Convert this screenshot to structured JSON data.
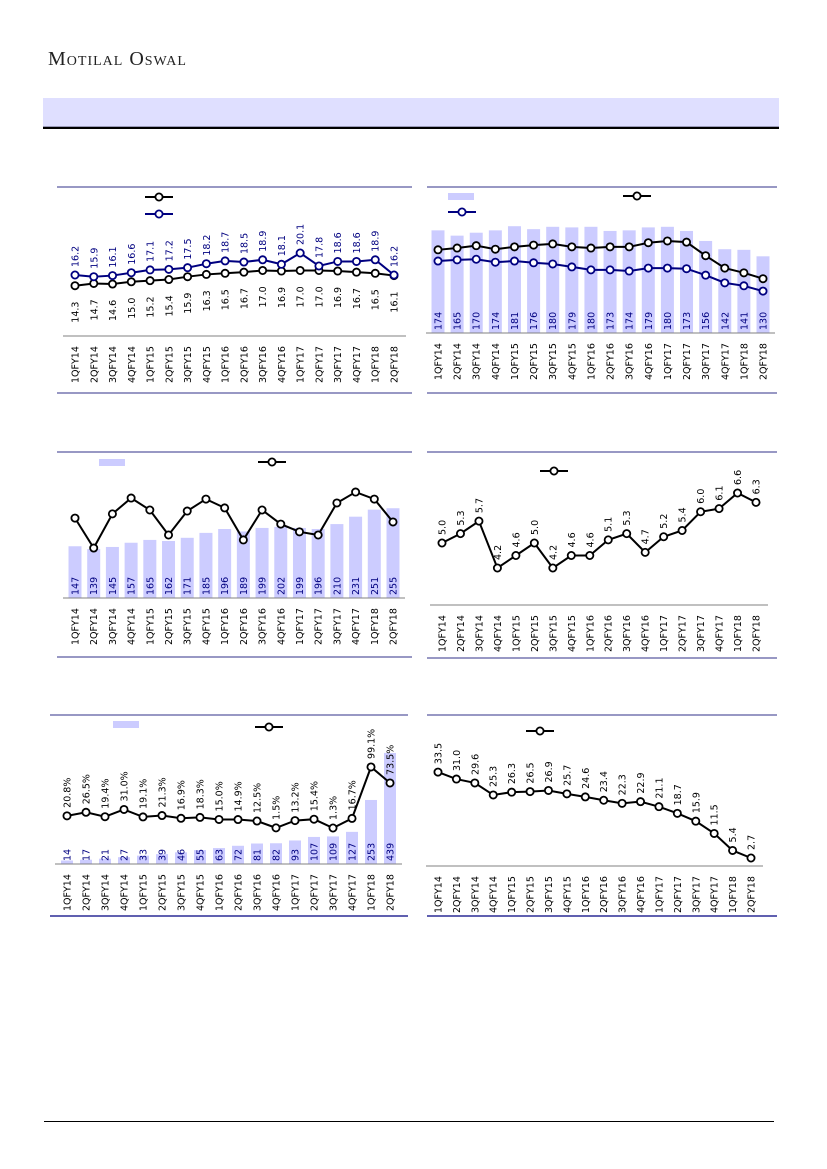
{
  "header": {
    "brand": "Motilal Oswal",
    "colors": {
      "band": "#dfdfff",
      "bar": "#ccccff",
      "navy": "#000080",
      "black": "#000000",
      "rule": "#5a5aa0"
    }
  },
  "chart_data": [
    {
      "type": "line",
      "id": "c1",
      "categories": [
        "1QFY14",
        "2QFY14",
        "3QFY14",
        "4QFY14",
        "1QFY15",
        "2QFY15",
        "3QFY15",
        "4QFY15",
        "1QFY16",
        "2QFY16",
        "3QFY16",
        "4QFY16",
        "1QFY17",
        "2QFY17",
        "3QFY17",
        "4QFY17",
        "1QFY18",
        "2QFY18"
      ],
      "series": [
        {
          "name": "",
          "color": "#000000",
          "labels": "below",
          "values": [
            14.3,
            14.7,
            14.6,
            15.0,
            15.2,
            15.4,
            15.9,
            16.3,
            16.5,
            16.7,
            17.0,
            16.9,
            17.0,
            17.0,
            16.9,
            16.7,
            16.5,
            16.1
          ],
          "value_labels": [
            "14.3",
            "14.7",
            "14.6",
            "15.0",
            "15.2",
            "15.4",
            "15.9",
            "16.3",
            "16.5",
            "16.7",
            "17.0",
            "16.9",
            "17.0",
            "17.0",
            "16.9",
            "16.7",
            "16.5",
            "16.1"
          ]
        },
        {
          "name": "",
          "color": "#000080",
          "labels": "above",
          "values": [
            16.2,
            15.9,
            16.1,
            16.6,
            17.1,
            17.2,
            17.5,
            18.2,
            18.7,
            18.5,
            18.9,
            18.1,
            20.1,
            17.8,
            18.6,
            18.6,
            18.9,
            16.2
          ],
          "value_labels": [
            "16.2",
            "15.9",
            "16.1",
            "16.6",
            "17.1",
            "17.2",
            "17.5",
            "18.2",
            "18.7",
            "18.5",
            "18.9",
            "18.1",
            "20.1",
            "17.8",
            "18.6",
            "18.6",
            "18.9",
            "16.2"
          ]
        }
      ],
      "legend": "top-left"
    },
    {
      "type": "bar+line",
      "id": "c2",
      "categories": [
        "1QFY14",
        "2QFY14",
        "3QFY14",
        "4QFY14",
        "1QFY15",
        "2QFY15",
        "3QFY15",
        "4QFY15",
        "1QFY16",
        "2QFY16",
        "3QFY16",
        "4QFY16",
        "1QFY17",
        "2QFY17",
        "3QFY17",
        "4QFY17",
        "1QFY18",
        "2QFY18"
      ],
      "bars": {
        "name": "",
        "values": [
          174,
          165,
          170,
          174,
          181,
          176,
          180,
          179,
          180,
          173,
          174,
          179,
          180,
          173,
          156,
          142,
          141,
          130
        ],
        "value_labels": [
          "174",
          "165",
          "170",
          "174",
          "181",
          "176",
          "180",
          "179",
          "180",
          "173",
          "174",
          "179",
          "180",
          "173",
          "156",
          "142",
          "141",
          "130"
        ]
      },
      "series": [
        {
          "name": "",
          "color": "#000000",
          "values": [
            141,
            144,
            148,
            142,
            146,
            149,
            151,
            146,
            144,
            146,
            146,
            153,
            156,
            154,
            131,
            110,
            102,
            92
          ]
        },
        {
          "name": "",
          "color": "#000080",
          "values": [
            122,
            124,
            125,
            120,
            122,
            119,
            117,
            112,
            107,
            107,
            105,
            110,
            110,
            109,
            98,
            85,
            80,
            71
          ]
        }
      ],
      "ylim": [
        0,
        260
      ]
    },
    {
      "type": "bar+line",
      "id": "c3",
      "categories": [
        "1QFY14",
        "2QFY14",
        "3QFY14",
        "4QFY14",
        "1QFY15",
        "2QFY15",
        "3QFY15",
        "4QFY15",
        "1QFY16",
        "2QFY16",
        "3QFY16",
        "4QFY16",
        "1QFY17",
        "2QFY17",
        "3QFY17",
        "4QFY17",
        "1QFY18",
        "2QFY18"
      ],
      "bars": {
        "name": "",
        "values": [
          147,
          139,
          145,
          157,
          165,
          162,
          171,
          185,
          196,
          189,
          199,
          202,
          199,
          196,
          210,
          231,
          251,
          255
        ],
        "value_labels": [
          "147",
          "139",
          "145",
          "157",
          "165",
          "162",
          "171",
          "185",
          "196",
          "189",
          "199",
          "202",
          "199",
          "196",
          "210",
          "231",
          "251",
          "255"
        ]
      },
      "series": [
        {
          "name": "",
          "color": "#000000",
          "values": [
            227,
            142,
            239,
            284,
            250,
            179,
            247,
            281,
            256,
            165,
            250,
            210,
            188,
            179,
            270,
            301,
            281,
            216
          ]
        }
      ],
      "ylim": [
        0,
        400
      ]
    },
    {
      "type": "line",
      "id": "c4",
      "categories": [
        "1QFY14",
        "2QFY14",
        "3QFY14",
        "4QFY14",
        "1QFY15",
        "2QFY15",
        "3QFY15",
        "4QFY15",
        "1QFY16",
        "2QFY16",
        "3QFY16",
        "4QFY16",
        "1QFY17",
        "2QFY17",
        "3QFY17",
        "4QFY17",
        "1QFY18",
        "2QFY18"
      ],
      "series": [
        {
          "name": "",
          "color": "#000000",
          "values": [
            5.0,
            5.3,
            5.7,
            4.2,
            4.6,
            5.0,
            4.2,
            4.6,
            4.6,
            5.1,
            5.3,
            4.7,
            5.2,
            5.4,
            6.0,
            6.1,
            6.6,
            6.3
          ],
          "value_labels": [
            "5.0",
            "5.3",
            "5.7",
            "4.2",
            "4.6",
            "5.0",
            "4.2",
            "4.6",
            "4.6",
            "5.1",
            "5.3",
            "4.7",
            "5.2",
            "5.4",
            "6.0",
            "6.1",
            "6.6",
            "6.3"
          ]
        }
      ]
    },
    {
      "type": "bar+line",
      "id": "c5",
      "categories": [
        "1QFY14",
        "2QFY14",
        "3QFY14",
        "4QFY14",
        "1QFY15",
        "2QFY15",
        "3QFY15",
        "4QFY15",
        "1QFY16",
        "2QFY16",
        "3QFY16",
        "4QFY16",
        "1QFY17",
        "2QFY17",
        "3QFY17",
        "4QFY17",
        "1QFY18",
        "2QFY18"
      ],
      "bars": {
        "name": "",
        "values": [
          14,
          17,
          21,
          27,
          33,
          39,
          46,
          55,
          63,
          72,
          81,
          82,
          93,
          107,
          109,
          127,
          253,
          439
        ],
        "value_labels": [
          "14",
          "17",
          "21",
          "27",
          "33",
          "39",
          "46",
          "55",
          "63",
          "72",
          "81",
          "82",
          "93",
          "107",
          "109",
          "127",
          "253",
          "439"
        ]
      },
      "series": [
        {
          "name": "",
          "color": "#000000",
          "values": [
            20.8,
            26.5,
            19.4,
            31.0,
            19.1,
            21.3,
            16.9,
            18.3,
            15.0,
            14.9,
            12.5,
            1.5,
            13.2,
            15.4,
            1.3,
            16.7,
            99.1,
            73.5
          ],
          "value_labels": [
            "20.8%",
            "26.5%",
            "19.4%",
            "31.0%",
            "19.1%",
            "21.3%",
            "16.9%",
            "18.3%",
            "15.0%",
            "14.9%",
            "12.5%",
            "1.5%",
            "13.2%",
            "15.4%",
            "1.3%",
            "16.7%",
            "99.1%",
            "73.5%"
          ]
        }
      ]
    },
    {
      "type": "line",
      "id": "c6",
      "categories": [
        "1QFY14",
        "2QFY14",
        "3QFY14",
        "4QFY14",
        "1QFY15",
        "2QFY15",
        "3QFY15",
        "4QFY15",
        "1QFY16",
        "2QFY16",
        "3QFY16",
        "4QFY16",
        "1QFY17",
        "2QFY17",
        "3QFY17",
        "4QFY17",
        "1QFY18",
        "2QFY18"
      ],
      "series": [
        {
          "name": "",
          "color": "#000000",
          "values": [
            33.5,
            31.0,
            29.6,
            25.3,
            26.3,
            26.5,
            26.9,
            25.7,
            24.6,
            23.4,
            22.3,
            22.9,
            21.1,
            18.7,
            15.9,
            11.5,
            5.4,
            2.7
          ],
          "value_labels": [
            "33.5",
            "31.0",
            "29.6",
            "25.3",
            "26.3",
            "26.5",
            "26.9",
            "25.7",
            "24.6",
            "23.4",
            "22.3",
            "22.9",
            "21.1",
            "18.7",
            "15.9",
            "11.5",
            "5.4",
            "2.7"
          ]
        }
      ]
    }
  ]
}
